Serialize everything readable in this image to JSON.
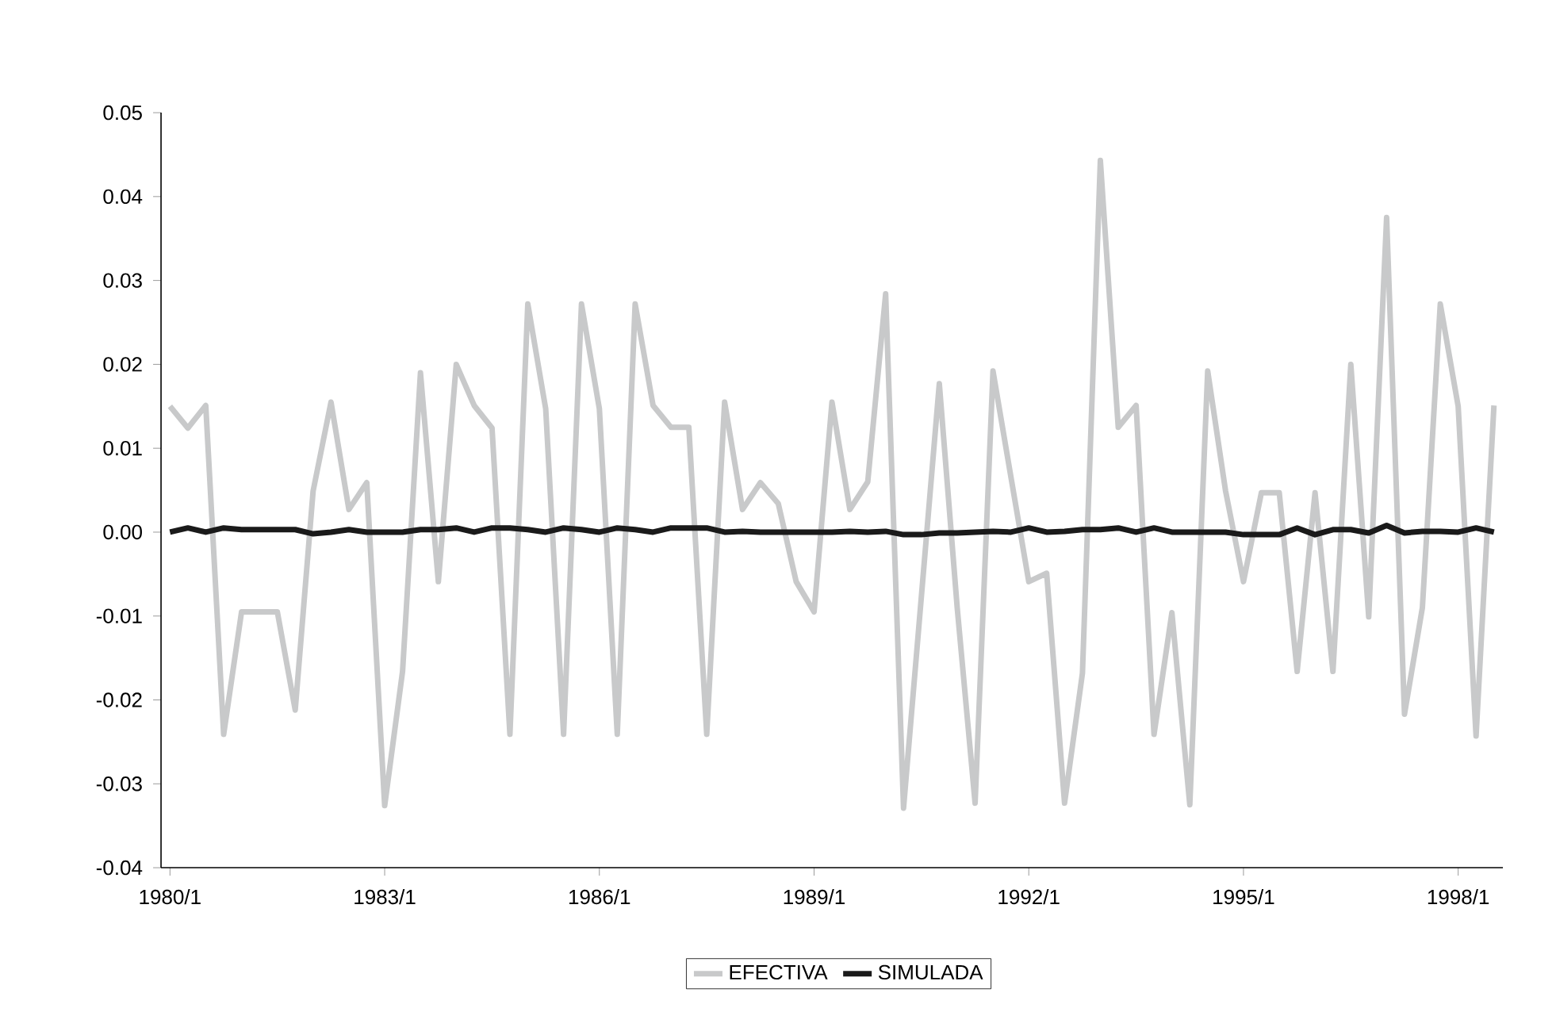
{
  "chart_data": {
    "type": "line",
    "categories": [
      "1980/1",
      null,
      null,
      null,
      null,
      null,
      null,
      null,
      null,
      null,
      null,
      null,
      "1983/1",
      null,
      null,
      null,
      null,
      null,
      null,
      null,
      null,
      null,
      null,
      null,
      "1986/1",
      null,
      null,
      null,
      null,
      null,
      null,
      null,
      null,
      null,
      null,
      null,
      "1989/1",
      null,
      null,
      null,
      null,
      null,
      null,
      null,
      null,
      null,
      null,
      null,
      "1992/1",
      null,
      null,
      null,
      null,
      null,
      null,
      null,
      null,
      null,
      null,
      null,
      "1995/1",
      null,
      null,
      null,
      null,
      null,
      null,
      null,
      null,
      null,
      null,
      null,
      "1998/1",
      null,
      null
    ],
    "series": [
      {
        "name": "EFECTIVA",
        "color": "#c8c9ca",
        "values": [
          0.015,
          0.0124,
          0.0151,
          -0.0241,
          -0.0095,
          -0.0095,
          -0.0095,
          -0.0212,
          0.0049,
          0.0155,
          0.0027,
          0.0059,
          -0.0326,
          -0.0166,
          0.019,
          -0.0059,
          0.02,
          0.0151,
          0.0124,
          -0.0241,
          0.0272,
          0.0147,
          -0.0241,
          0.0272,
          0.0147,
          -0.0241,
          0.0272,
          0.0151,
          0.0125,
          0.0125,
          -0.0241,
          0.0155,
          0.0027,
          0.0059,
          0.0034,
          -0.0059,
          -0.0095,
          0.0155,
          0.0027,
          0.006,
          0.0284,
          -0.0329,
          -0.0076,
          0.0177,
          -0.009,
          -0.0323,
          0.0192,
          0.0066,
          -0.0059,
          -0.0049,
          -0.0323,
          -0.0168,
          0.0443,
          0.0125,
          0.0151,
          -0.0241,
          -0.0096,
          -0.0325,
          0.0192,
          0.0049,
          -0.0059,
          0.0047,
          0.0047,
          -0.0166,
          0.0047,
          -0.0166,
          0.02,
          -0.0101,
          0.0375,
          -0.0217,
          -0.009,
          0.0272,
          0.015,
          -0.0243,
          0.0151
        ]
      },
      {
        "name": "SIMULADA",
        "color": "#1a1a1a",
        "values": [
          0.0,
          0.0005,
          0.0,
          0.0005,
          0.0003,
          0.0003,
          0.0003,
          0.0003,
          -0.0002,
          0.0,
          0.0003,
          0.0,
          0.0,
          0.0,
          0.0003,
          0.0003,
          0.0005,
          0.0,
          0.0005,
          0.0005,
          0.0003,
          0.0,
          0.0005,
          0.0003,
          0.0,
          0.0005,
          0.0003,
          0.0,
          0.0005,
          0.0005,
          0.0005,
          0.0,
          0.0001,
          0.0,
          0.0,
          0.0,
          0.0,
          0.0,
          0.0001,
          0.0,
          0.0001,
          -0.0003,
          -0.0003,
          -0.0001,
          -0.0001,
          0.0,
          0.0001,
          0.0,
          0.0005,
          0.0,
          0.0001,
          0.0003,
          0.0003,
          0.0005,
          0.0,
          0.0005,
          0.0,
          0.0,
          0.0,
          0.0,
          -0.0003,
          -0.0003,
          -0.0003,
          0.0005,
          -0.0003,
          0.0003,
          0.0003,
          -0.0001,
          0.0008,
          -0.0001,
          0.0001,
          0.0001,
          0.0,
          0.0005,
          0.0
        ]
      }
    ],
    "ylim": [
      -0.04,
      0.05
    ],
    "yticks": [
      -0.04,
      -0.03,
      -0.02,
      -0.01,
      {
        "value": 0,
        "label": "0.00"
      },
      0.01,
      0.02,
      0.03,
      0.04,
      0.05
    ],
    "grid": false,
    "legend": "bottom"
  }
}
